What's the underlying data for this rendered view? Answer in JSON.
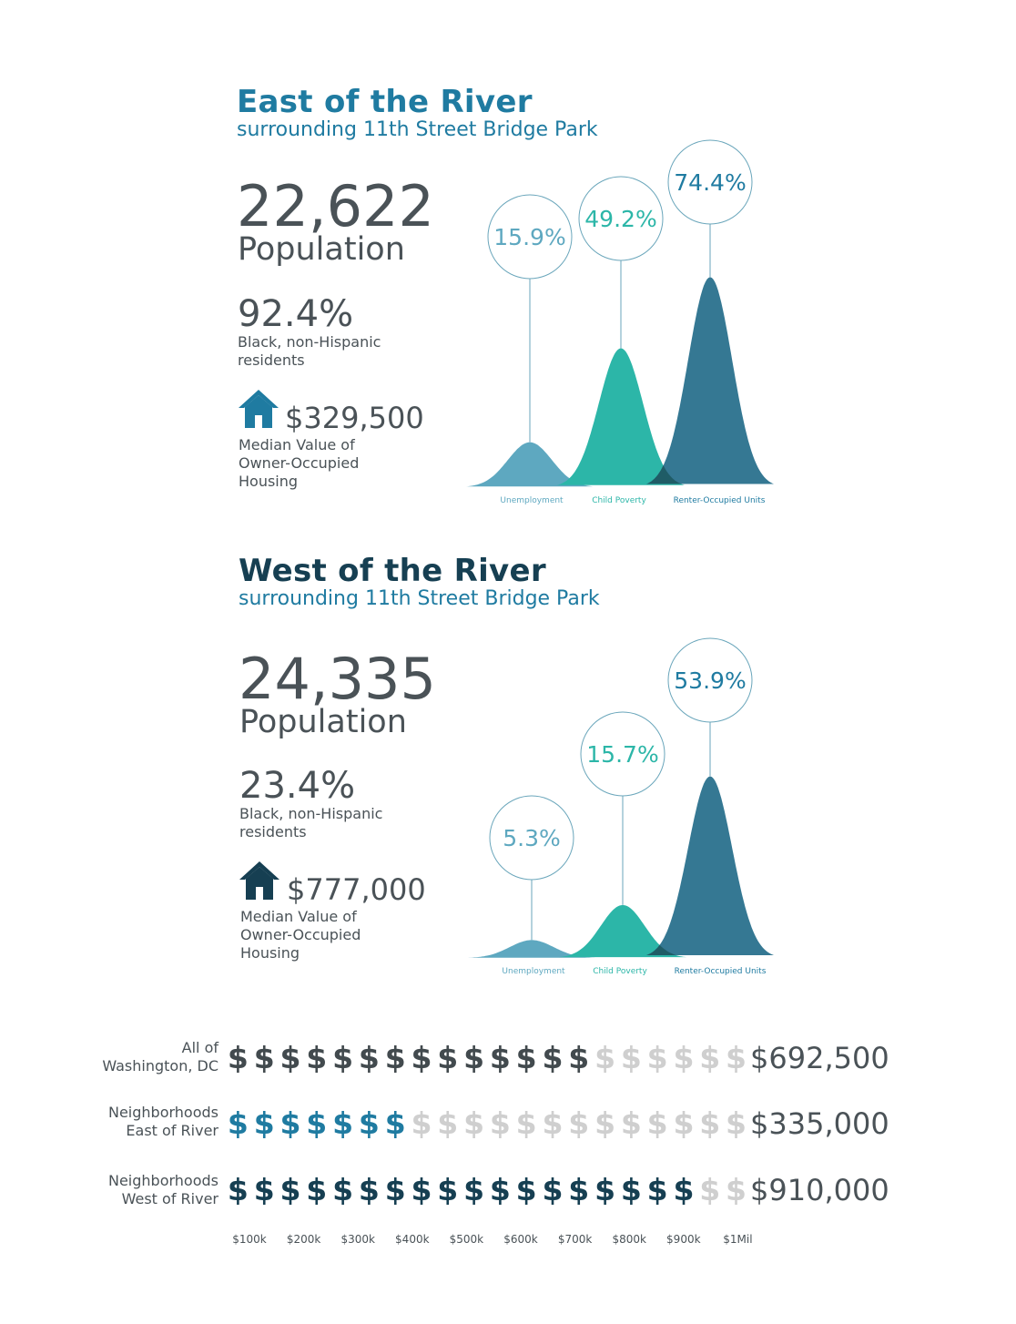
{
  "colors": {
    "title_east": "#1f7ba1",
    "title_west": "#163f52",
    "unemployment": "#5ea8c0",
    "child_poverty": "#2cb6a8",
    "renter_occupied": "#357893",
    "overlap": "#1f5c66",
    "dollar_gray": "#cfcfcf",
    "dollar_dc": "#424a4e",
    "dollar_east": "#1f7ba1",
    "dollar_west": "#163f52"
  },
  "east": {
    "title": "East of the River",
    "subtitle": "surrounding 11th Street Bridge Park",
    "population": "22,622",
    "population_label": "Population",
    "black_pct": "92.4%",
    "black_label_1": "Black, non-Hispanic",
    "black_label_2": "residents",
    "home_icon": "house-icon",
    "median_value": "$329,500",
    "median_label_1": "Median Value of",
    "median_label_2": "Owner-Occupied",
    "median_label_3": "Housing"
  },
  "west": {
    "title": "West of the River",
    "subtitle": "surrounding 11th Street Bridge Park",
    "population": "24,335",
    "population_label": "Population",
    "black_pct": "23.4%",
    "black_label_1": "Black, non-Hispanic",
    "black_label_2": "residents",
    "home_icon": "house-icon",
    "median_value": "$777,000",
    "median_label_1": "Median Value of",
    "median_label_2": "Owner-Occupied",
    "median_label_3": "Housing"
  },
  "chart_data": [
    {
      "type": "area",
      "region": "East of the River",
      "categories": [
        "Unemployment",
        "Child Poverty",
        "Renter-Occupied Units"
      ],
      "values": [
        15.9,
        49.2,
        74.4
      ],
      "labels": [
        "15.9%",
        "49.2%",
        "74.4%"
      ]
    },
    {
      "type": "area",
      "region": "West of the River",
      "categories": [
        "Unemployment",
        "Child Poverty",
        "Renter-Occupied Units"
      ],
      "values": [
        5.3,
        15.7,
        53.9
      ],
      "labels": [
        "5.3%",
        "15.7%",
        "53.9%"
      ]
    },
    {
      "type": "bar",
      "categories": [
        "All of Washington, DC",
        "Neighborhoods East of River",
        "Neighborhoods West of River"
      ],
      "row_labels": [
        [
          "All of",
          "Washington, DC"
        ],
        [
          "Neighborhoods",
          "East of River"
        ],
        [
          "Neighborhoods",
          "West of River"
        ]
      ],
      "values": [
        692500,
        335000,
        910000
      ],
      "value_labels": [
        "$692,500",
        "$335,000",
        "$910,000"
      ],
      "x_ticks": [
        "$100k",
        "$200k",
        "$300k",
        "$400k",
        "$500k",
        "$600k",
        "$700k",
        "$800k",
        "$900k",
        "$1Mil"
      ],
      "unit_per_symbol": 50000,
      "max": 1000000
    }
  ]
}
